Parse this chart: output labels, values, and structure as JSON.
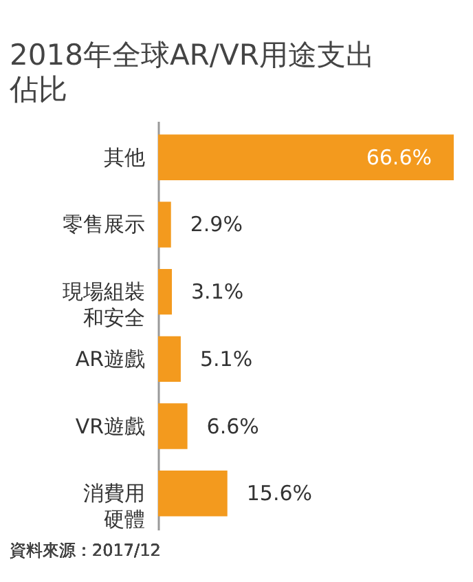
{
  "chart_data": {
    "type": "bar",
    "orientation": "horizontal",
    "title": "2018年全球AR/VR用途支出佔比",
    "categories": [
      "其他",
      "零售展示",
      "現場組裝和安全",
      "AR遊戲",
      "VR遊戲",
      "消費用硬體"
    ],
    "values": [
      66.6,
      2.9,
      3.1,
      5.1,
      6.6,
      15.6
    ],
    "value_labels": [
      "66.6%",
      "2.9%",
      "3.1%",
      "5.1%",
      "6.6%",
      "15.6%"
    ],
    "color": "#f39a1e",
    "annotations": [
      "資料來源：2017/12"
    ]
  }
}
